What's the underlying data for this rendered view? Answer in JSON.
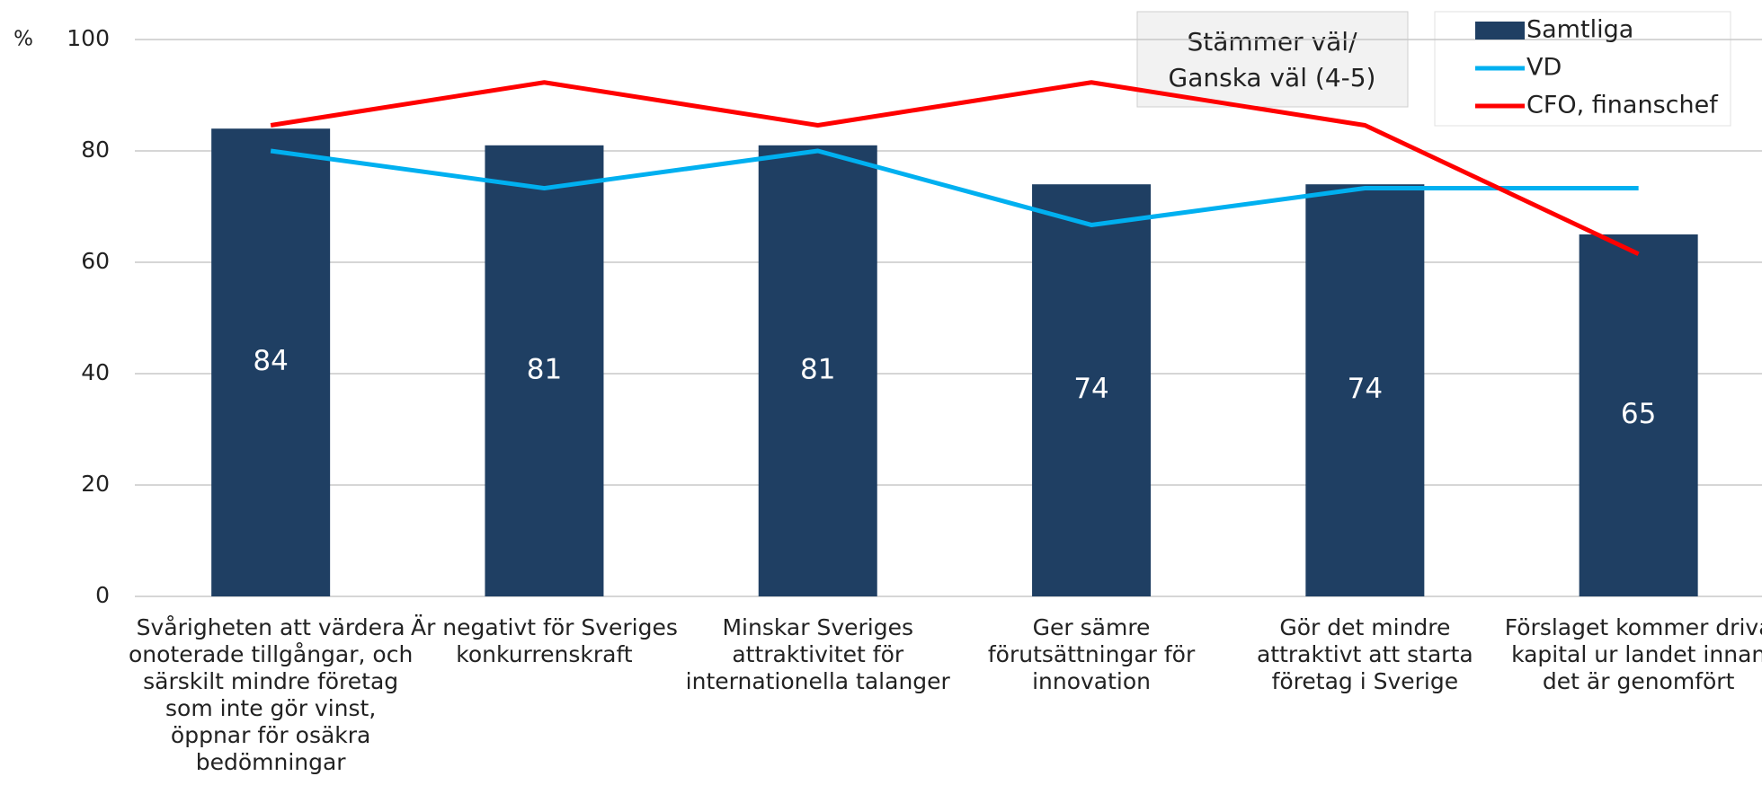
{
  "chart_data": {
    "type": "bar",
    "y_unit": "%",
    "annotation": [
      "Stämmer väl/",
      "Ganska väl (4-5)"
    ],
    "categories": [
      "Svårigheten att värdera\nonoterade tillgångar, och\nsärskilt mindre företag\nsom inte gör vinst,\nöppnar för osäkra\nbedömningar",
      "Är negativt för Sveriges\nkonkurrenskraft",
      "Minskar Sveriges\nattraktivitet för\ninternationella talanger",
      "Ger sämre\nförutsättningar för\ninnovation",
      "Gör det mindre\nattraktivt att starta\nföretag i Sverige",
      "Förslaget kommer driva\nkapital ur landet innan\ndet är genomfört"
    ],
    "series": [
      {
        "name": "Samtliga",
        "type": "bar",
        "color": "#1f3f63",
        "values": [
          84,
          81,
          81,
          74,
          74,
          65
        ]
      },
      {
        "name": "VD",
        "type": "line",
        "color": "#00b0f0",
        "values": [
          80,
          73.3,
          80,
          66.7,
          73.3,
          73.3
        ]
      },
      {
        "name": "CFO, finanschef",
        "type": "line",
        "color": "#ff0000",
        "values": [
          84.6,
          92.3,
          84.6,
          92.3,
          84.6,
          61.5
        ]
      }
    ],
    "ylim": [
      0,
      100
    ],
    "yticks": [
      0,
      20,
      40,
      60,
      80,
      100
    ],
    "grid": true,
    "legend": "upper right"
  }
}
